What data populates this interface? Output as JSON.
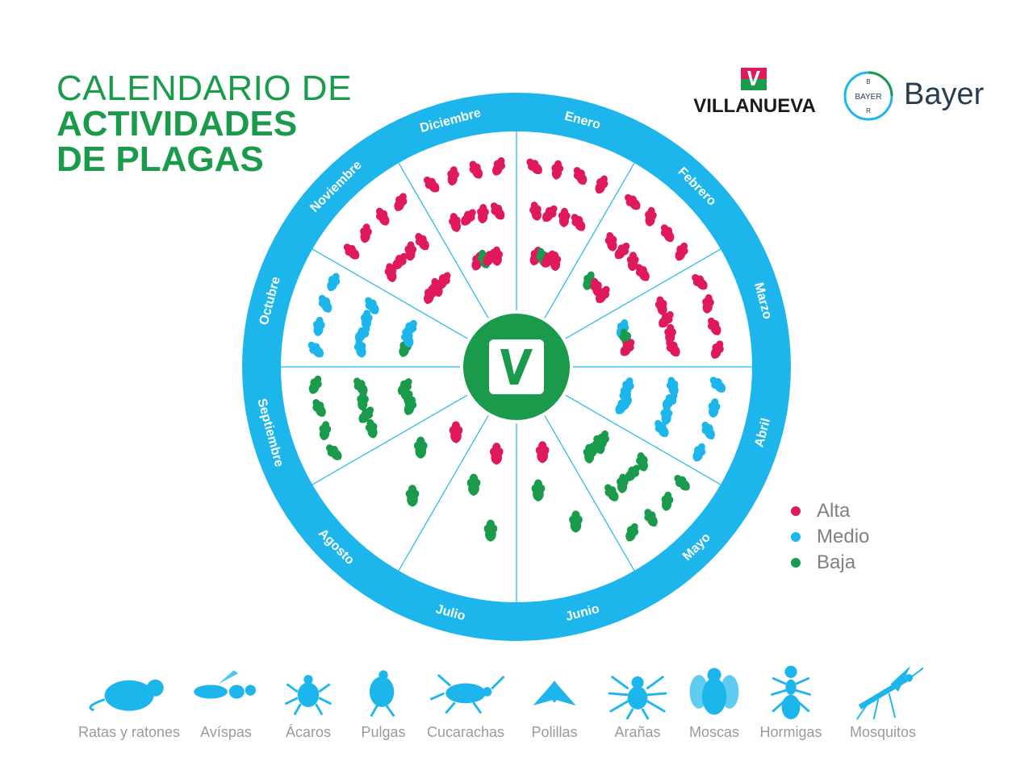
{
  "title": {
    "line1": "CALENDARIO DE",
    "line2": "ACTIVIDADES",
    "line3": "DE PLAGAS"
  },
  "logos": {
    "villanueva": "VILLANUEVA",
    "bayer_word": "Bayer",
    "bayer_cross": "BAYER"
  },
  "colors": {
    "alta": "#e0195a",
    "medio": "#1db6ec",
    "baja": "#1a9b4b",
    "ring": "#1db6ec"
  },
  "months": [
    "Enero",
    "Febrero",
    "Marzo",
    "Abril",
    "Mayo",
    "Junio",
    "Julio",
    "Agosto",
    "Septiembre",
    "Octubre",
    "Noviembre",
    "Diciembre"
  ],
  "legend": [
    {
      "label": "Alta",
      "level": "alta"
    },
    {
      "label": "Medio",
      "level": "medio"
    },
    {
      "label": "Baja",
      "level": "baja"
    }
  ],
  "wedge_pests": {
    "Enero": [
      "alta",
      "alta",
      "alta",
      "alta",
      "alta",
      "alta",
      "alta",
      "alta",
      "alta",
      "baja",
      "alta",
      "alta"
    ],
    "Febrero": [
      "alta",
      "alta",
      "alta",
      "alta",
      "alta",
      "alta",
      "alta",
      "alta",
      "baja",
      "alta",
      "alta"
    ],
    "Marzo": [
      "alta",
      "alta",
      "alta",
      "alta",
      "alta",
      "alta",
      "alta",
      "alta",
      "medio",
      "baja",
      "alta"
    ],
    "Abril": [
      "medio",
      "medio",
      "medio",
      "medio",
      "medio",
      "medio",
      "medio",
      "medio",
      "medio",
      "medio",
      "medio"
    ],
    "Mayo": [
      "baja",
      "baja",
      "baja",
      "baja",
      "baja",
      "baja",
      "baja",
      "baja",
      "baja",
      "baja",
      "baja",
      "baja"
    ],
    "Junio": [
      "baja",
      "baja",
      "alta"
    ],
    "Julio": [
      "baja",
      "baja",
      "alta"
    ],
    "Agosto": [
      "baja",
      "baja",
      "alta"
    ],
    "Septiembre": [
      "baja",
      "baja",
      "baja",
      "baja",
      "baja",
      "baja",
      "baja",
      "baja",
      "baja",
      "baja",
      "baja"
    ],
    "Octubre": [
      "medio",
      "medio",
      "medio",
      "medio",
      "medio",
      "medio",
      "medio",
      "medio",
      "baja",
      "medio",
      "medio"
    ],
    "Noviembre": [
      "alta",
      "alta",
      "alta",
      "alta",
      "alta",
      "alta",
      "alta",
      "alta",
      "alta",
      "alta",
      "alta"
    ],
    "Diciembre": [
      "alta",
      "alta",
      "alta",
      "alta",
      "alta",
      "alta",
      "alta",
      "alta",
      "alta",
      "baja",
      "alta",
      "alta"
    ]
  },
  "pests": [
    {
      "label": "Ratas y ratones",
      "icon": "rat-icon"
    },
    {
      "label": "Avíspas",
      "icon": "wasp-icon"
    },
    {
      "label": "Ácaros",
      "icon": "mite-icon"
    },
    {
      "label": "Pulgas",
      "icon": "flea-icon"
    },
    {
      "label": "Cucarachas",
      "icon": "cockroach-icon"
    },
    {
      "label": "Polillas",
      "icon": "moth-icon"
    },
    {
      "label": "Arañas",
      "icon": "spider-icon"
    },
    {
      "label": "Moscas",
      "icon": "fly-icon"
    },
    {
      "label": "Hormigas",
      "icon": "ant-icon"
    },
    {
      "label": "Mosquitos",
      "icon": "mosquito-icon"
    }
  ]
}
